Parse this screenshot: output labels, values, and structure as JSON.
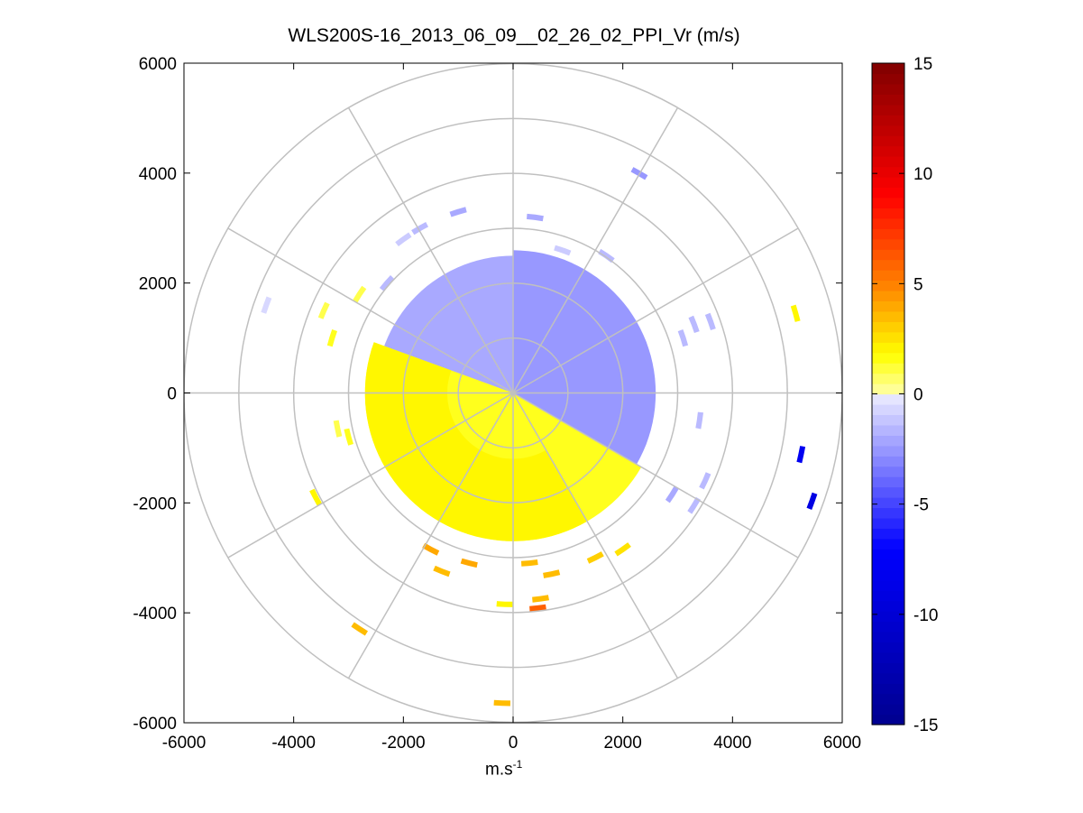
{
  "chart_data": {
    "type": "heatmap",
    "subtype": "polar-ppi",
    "title": "WLS200S-16_2013_06_09__02_26_02_PPI_Vr (m/s)",
    "xlabel": "m.s",
    "xlabel_superscript": "-1",
    "ylabel": "",
    "xlim": [
      -6000,
      6000
    ],
    "ylim": [
      -6000,
      6000
    ],
    "x_ticks": [
      "-6000",
      "-4000",
      "-2000",
      "0",
      "2000",
      "4000",
      "6000"
    ],
    "y_ticks": [
      "6000",
      "4000",
      "2000",
      "0",
      "-2000",
      "-4000",
      "-6000"
    ],
    "polar_grid": {
      "ring_radii": [
        1000,
        2000,
        3000,
        4000,
        5000,
        6000
      ],
      "spoke_angles_deg": [
        0,
        30,
        60,
        90,
        120,
        150,
        180,
        210,
        240,
        270,
        300,
        330
      ],
      "color": "#c0c0c0"
    },
    "colorbar": {
      "range": [
        -15,
        15
      ],
      "ticks": [
        "15",
        "10",
        "5",
        "0",
        "-5",
        "-10",
        "-15"
      ],
      "colors": {
        "neg_dark": "#00008f",
        "neg_mid": "#0000ff",
        "neg_light": "#e6e6ff",
        "zero": "#ffffff",
        "pos_light": "#ffff99",
        "pos_yellow": "#ffff00",
        "pos_orange": "#ff8000",
        "pos_red": "#ff0000",
        "pos_dark": "#800000"
      },
      "position": "right"
    },
    "grid": "polar",
    "regions": [
      {
        "value": -2.0,
        "r_inner": 0,
        "r_outer": 2500,
        "az_start": 270,
        "az_end": 360,
        "note": "approaching, north-west sector"
      },
      {
        "value": -2.5,
        "r_inner": 0,
        "r_outer": 2600,
        "az_start": 0,
        "az_end": 120,
        "note": "approaching, north-east sector"
      },
      {
        "value": 1.5,
        "r_inner": 0,
        "r_outer": 2700,
        "az_start": 120,
        "az_end": 290,
        "note": "receding, southern sector"
      },
      {
        "value": 2.0,
        "r_inner": 1200,
        "r_outer": 2700,
        "az_start": 150,
        "az_end": 290,
        "note": "receding, outer band"
      }
    ],
    "scattered_points": [
      {
        "x": -4500,
        "y": 1600,
        "value": -0.6
      },
      {
        "x": 2300,
        "y": 4000,
        "value": -2.5
      },
      {
        "x": 5150,
        "y": 1450,
        "value": 2.0
      },
      {
        "x": 5250,
        "y": -1120,
        "value": -8.0
      },
      {
        "x": 5450,
        "y": -1970,
        "value": -9.0
      },
      {
        "x": -2800,
        "y": -4300,
        "value": 3.5
      },
      {
        "x": -200,
        "y": -5650,
        "value": 3.5
      },
      {
        "x": 450,
        "y": -3920,
        "value": 6.0
      },
      {
        "x": -3600,
        "y": -1900,
        "value": 2.0
      },
      {
        "x": -1500,
        "y": -2850,
        "value": 4.0
      },
      {
        "x": -1300,
        "y": -3250,
        "value": 3.5
      },
      {
        "x": -800,
        "y": -3100,
        "value": 4.0
      },
      {
        "x": 300,
        "y": -3100,
        "value": 3.5
      },
      {
        "x": 700,
        "y": -3300,
        "value": 3.5
      },
      {
        "x": 1500,
        "y": -3000,
        "value": 3.0
      },
      {
        "x": 2000,
        "y": -2850,
        "value": 2.5
      },
      {
        "x": 2900,
        "y": -1850,
        "value": -2.0
      },
      {
        "x": 3300,
        "y": -2050,
        "value": -1.5
      },
      {
        "x": 3500,
        "y": -1600,
        "value": -1.5
      },
      {
        "x": 3100,
        "y": 1000,
        "value": -1.5
      },
      {
        "x": 3300,
        "y": 1250,
        "value": -1.5
      },
      {
        "x": 3600,
        "y": 1300,
        "value": -1.5
      },
      {
        "x": 3400,
        "y": -500,
        "value": -1.5
      },
      {
        "x": -3000,
        "y": -800,
        "value": 1.5
      },
      {
        "x": -3200,
        "y": -650,
        "value": 1.0
      },
      {
        "x": -2800,
        "y": 1800,
        "value": 1.0
      },
      {
        "x": -2300,
        "y": 2000,
        "value": -1.5
      },
      {
        "x": -2000,
        "y": 2800,
        "value": -1.0
      },
      {
        "x": -1700,
        "y": 3000,
        "value": -1.5
      },
      {
        "x": -1000,
        "y": 3300,
        "value": -2.0
      },
      {
        "x": 400,
        "y": 3200,
        "value": -2.0
      },
      {
        "x": 900,
        "y": 2600,
        "value": -1.0
      },
      {
        "x": 1700,
        "y": 2500,
        "value": -1.5
      },
      {
        "x": -3450,
        "y": 1500,
        "value": 1.0
      },
      {
        "x": -3300,
        "y": 1000,
        "value": 1.5
      },
      {
        "x": 500,
        "y": -3750,
        "value": 3.5
      },
      {
        "x": -150,
        "y": -3850,
        "value": 2.0
      }
    ]
  }
}
